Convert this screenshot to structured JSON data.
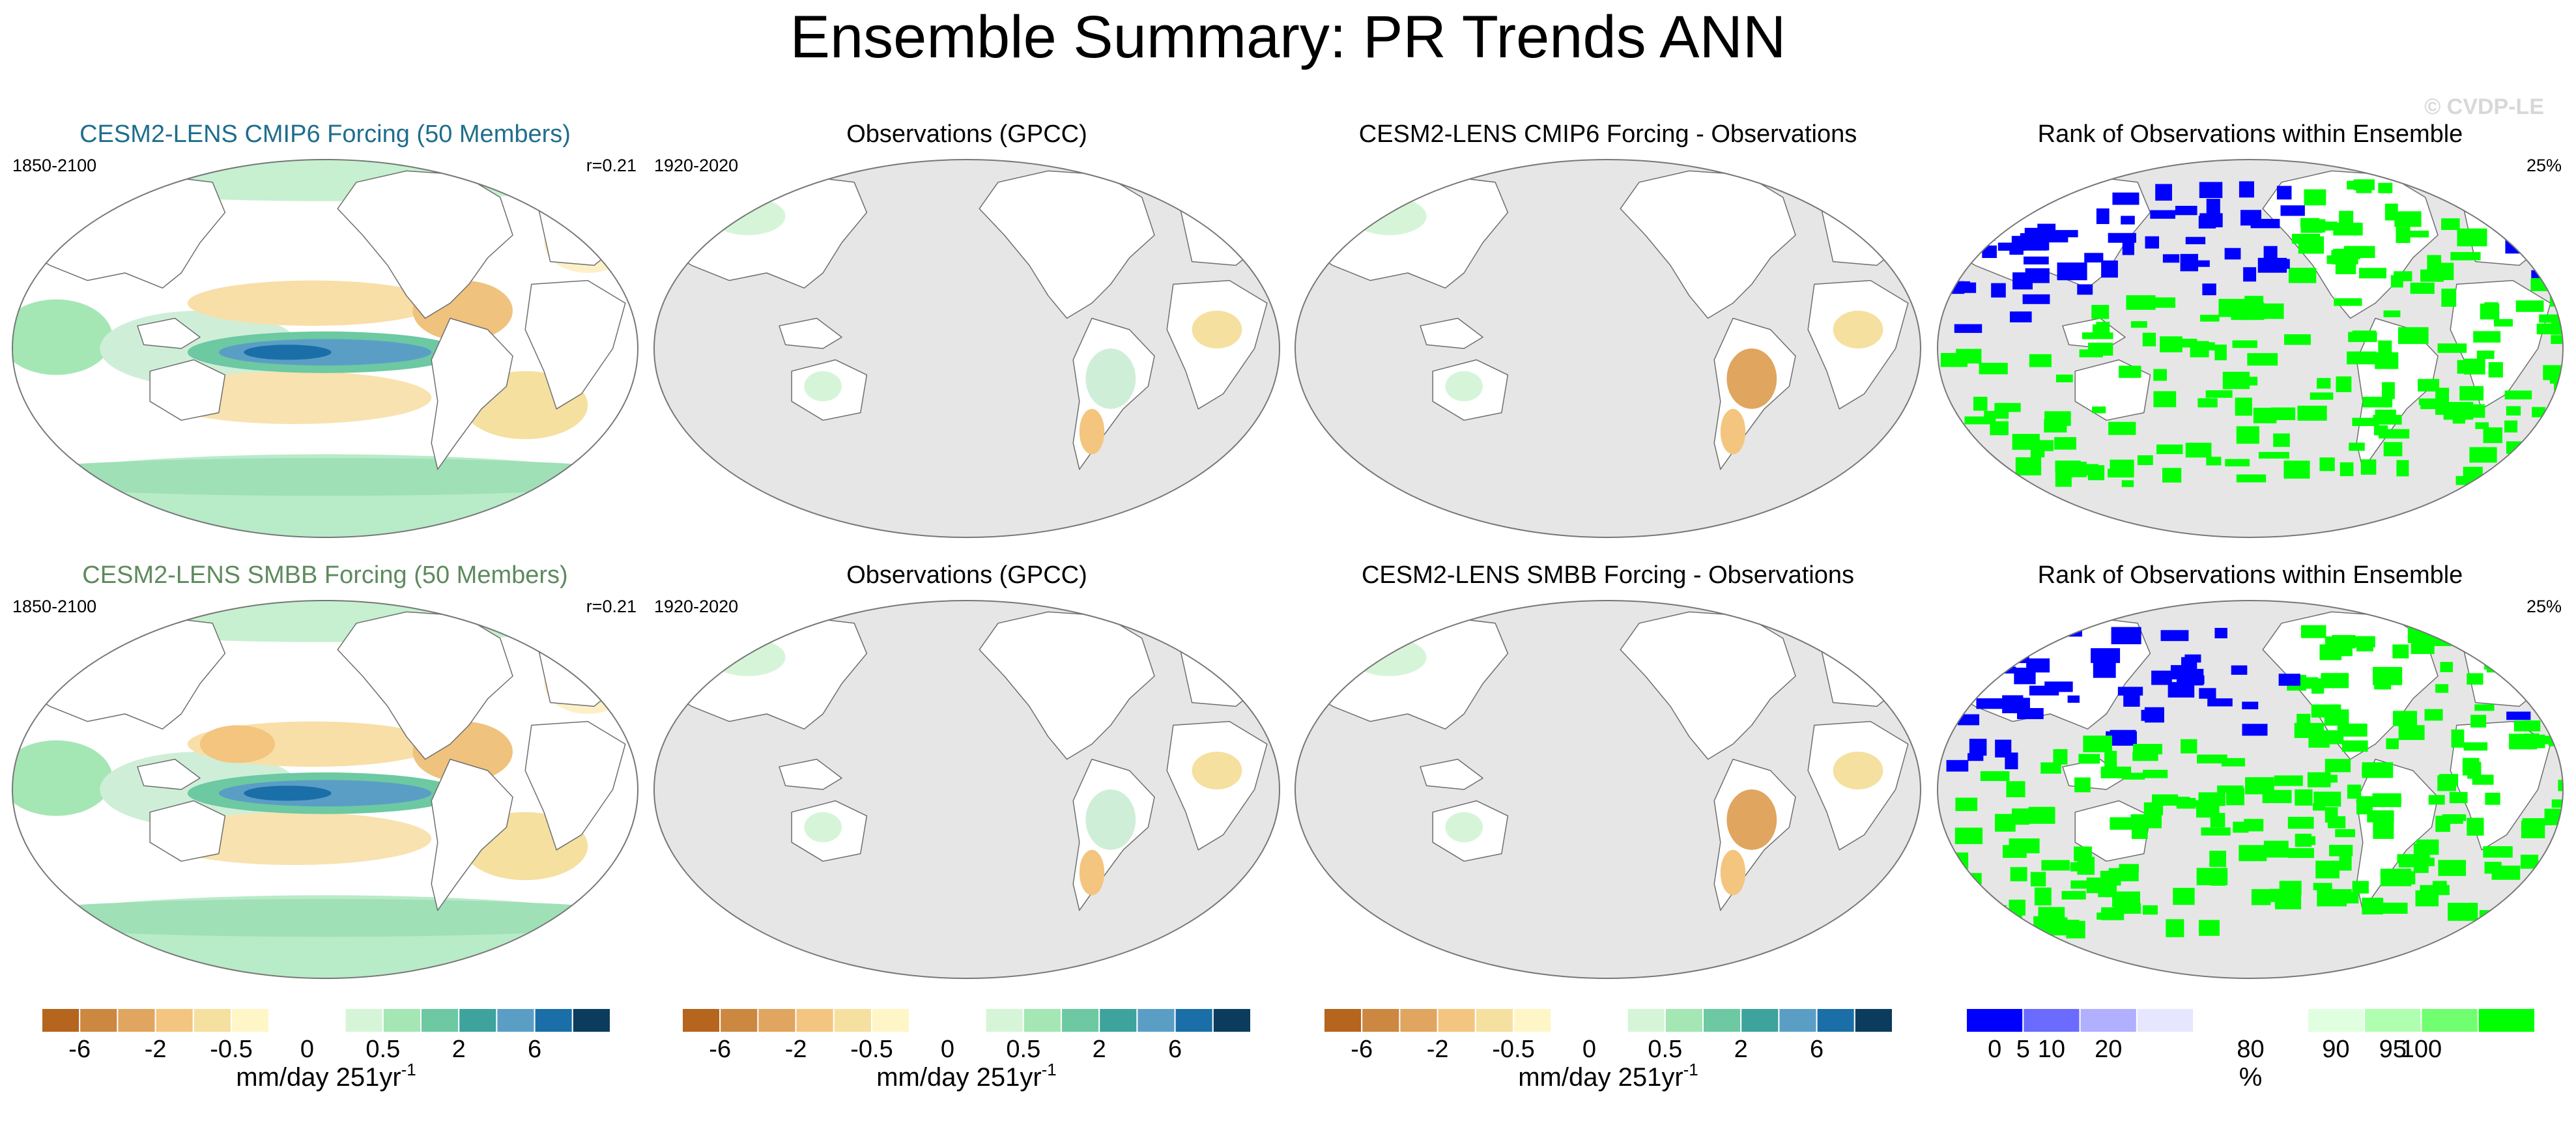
{
  "figure": {
    "title": "Ensemble Summary: PR Trends ANN",
    "watermark": "© CVDP-LE"
  },
  "colors": {
    "ocean": "#e6e6e6",
    "land_outline": "#6e6e6e",
    "text_model1": "#1f6e8c",
    "text_model2": "#5e8a5e"
  },
  "chart_data": [
    {
      "type": "map",
      "id": "model1",
      "title": "CESM2-LENS CMIP6 Forcing (50 Members)",
      "left_label": "1850-2100",
      "right_label": "r=0.21",
      "field": "trend_model",
      "variant": 1
    },
    {
      "type": "map",
      "id": "obs1",
      "title": "Observations (GPCC)",
      "left_label": "1920-2020",
      "right_label": "",
      "field": "trend_obs",
      "variant": 1
    },
    {
      "type": "map",
      "id": "diff1",
      "title": "CESM2-LENS CMIP6 Forcing - Observations",
      "left_label": "",
      "right_label": "",
      "field": "trend_diff",
      "variant": 1
    },
    {
      "type": "map",
      "id": "rank1",
      "title": "Rank of Observations within Ensemble",
      "left_label": "",
      "right_label": "25%",
      "field": "rank",
      "variant": 1
    },
    {
      "type": "map",
      "id": "model2",
      "title": "CESM2-LENS SMBB Forcing (50 Members)",
      "left_label": "1850-2100",
      "right_label": "r=0.21",
      "field": "trend_model",
      "variant": 2
    },
    {
      "type": "map",
      "id": "obs2",
      "title": "Observations (GPCC)",
      "left_label": "1920-2020",
      "right_label": "",
      "field": "trend_obs",
      "variant": 2
    },
    {
      "type": "map",
      "id": "diff2",
      "title": "CESM2-LENS SMBB Forcing - Observations",
      "left_label": "",
      "right_label": "",
      "field": "trend_diff",
      "variant": 2
    },
    {
      "type": "map",
      "id": "rank2",
      "title": "Rank of Observations within Ensemble",
      "left_label": "",
      "right_label": "25%",
      "field": "rank",
      "variant": 2
    }
  ],
  "colorbars": [
    {
      "id": "cb-trend-1",
      "colors": [
        "#b5651d",
        "#cc8840",
        "#e0a55e",
        "#f3c57e",
        "#f5e0a0",
        "#fff6c8",
        "#ffffff",
        "#ffffff",
        "#d6f5d8",
        "#a5e6b5",
        "#6cc9a2",
        "#3da39c",
        "#5a9ec6",
        "#1a6fa8",
        "#0b3c5d"
      ],
      "tick_labels": [
        "-6",
        "-2",
        "-0.5",
        "0",
        "0.5",
        "2",
        "6"
      ],
      "tick_positions": [
        1,
        3,
        5,
        7,
        9,
        11,
        13
      ],
      "label": "mm/day 251yr",
      "label_sup": "-1"
    },
    {
      "id": "cb-trend-2",
      "colors": [
        "#b5651d",
        "#cc8840",
        "#e0a55e",
        "#f3c57e",
        "#f5e0a0",
        "#fff6c8",
        "#ffffff",
        "#ffffff",
        "#d6f5d8",
        "#a5e6b5",
        "#6cc9a2",
        "#3da39c",
        "#5a9ec6",
        "#1a6fa8",
        "#0b3c5d"
      ],
      "tick_labels": [
        "-6",
        "-2",
        "-0.5",
        "0",
        "0.5",
        "2",
        "6"
      ],
      "tick_positions": [
        1,
        3,
        5,
        7,
        9,
        11,
        13
      ],
      "label": "mm/day 251yr",
      "label_sup": "-1"
    },
    {
      "id": "cb-trend-3",
      "colors": [
        "#b5651d",
        "#cc8840",
        "#e0a55e",
        "#f3c57e",
        "#f5e0a0",
        "#fff6c8",
        "#ffffff",
        "#ffffff",
        "#d6f5d8",
        "#a5e6b5",
        "#6cc9a2",
        "#3da39c",
        "#5a9ec6",
        "#1a6fa8",
        "#0b3c5d"
      ],
      "tick_labels": [
        "-6",
        "-2",
        "-0.5",
        "0",
        "0.5",
        "2",
        "6"
      ],
      "tick_positions": [
        1,
        3,
        5,
        7,
        9,
        11,
        13
      ],
      "label": "mm/day 251yr",
      "label_sup": "-1"
    },
    {
      "id": "cb-rank",
      "colors": [
        "#0000ff",
        "#6b6bff",
        "#b0b0ff",
        "#e6e6ff",
        "#ffffff",
        "#ffffff",
        "#e0ffe0",
        "#b0ffb0",
        "#70ff70",
        "#00ff00"
      ],
      "tick_labels": [
        "0",
        "5",
        "10",
        "20",
        "80",
        "90",
        "95",
        "100"
      ],
      "tick_positions": [
        0.5,
        1,
        1.5,
        2.5,
        5,
        6.5,
        7.5,
        8
      ],
      "label": "%",
      "label_sup": ""
    }
  ]
}
